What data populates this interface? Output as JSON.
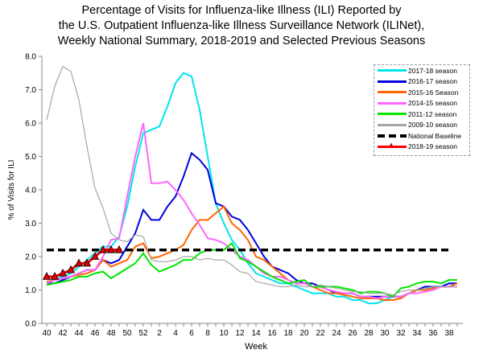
{
  "chart_data": {
    "type": "line",
    "title": [
      "Percentage of Visits for Influenza-like Illness (ILI) Reported by",
      "the U.S. Outpatient Influenza-like Illness Surveillance Network (ILINet),",
      "Weekly National Summary, 2018-2019 and Selected Previous Seasons"
    ],
    "xlabel": "Week",
    "ylabel": "% of Visits for ILI",
    "ylim": [
      0,
      8
    ],
    "yticks": [
      "0.0",
      "1.0",
      "2.0",
      "3.0",
      "4.0",
      "5.0",
      "6.0",
      "7.0",
      "8.0"
    ],
    "weeks": [
      40,
      41,
      42,
      43,
      44,
      45,
      46,
      47,
      48,
      49,
      50,
      51,
      52,
      1,
      2,
      3,
      4,
      5,
      6,
      7,
      8,
      9,
      10,
      11,
      12,
      13,
      14,
      15,
      16,
      17,
      18,
      19,
      20,
      21,
      22,
      23,
      24,
      25,
      26,
      27,
      28,
      29,
      30,
      31,
      32,
      33,
      34,
      35,
      36,
      37,
      38,
      39
    ],
    "xticks": [
      "40",
      "42",
      "44",
      "46",
      "48",
      "50",
      "52",
      "2",
      "4",
      "6",
      "8",
      "10",
      "12",
      "14",
      "16",
      "18",
      "20",
      "22",
      "24",
      "26",
      "28",
      "30",
      "32",
      "34",
      "36",
      "38"
    ],
    "legend_position": "top-right",
    "series": [
      {
        "name": "2017-18 season",
        "color": "#00e5ee",
        "values": [
          1.2,
          1.3,
          1.4,
          1.5,
          1.7,
          1.9,
          2.1,
          2.3,
          2.3,
          2.6,
          3.5,
          4.7,
          5.7,
          5.8,
          5.9,
          6.5,
          7.2,
          7.5,
          7.4,
          6.4,
          5.0,
          3.6,
          3.0,
          2.5,
          2.2,
          1.8,
          1.5,
          1.4,
          1.3,
          1.2,
          1.2,
          1.1,
          1.0,
          0.9,
          0.9,
          0.9,
          0.8,
          0.8,
          0.7,
          0.7,
          0.6,
          0.6,
          0.7,
          0.8,
          0.8,
          0.9,
          1.0,
          1.0,
          1.1,
          1.1,
          1.2,
          1.2
        ]
      },
      {
        "name": "2016-17 season",
        "color": "#0000e0",
        "values": [
          1.2,
          1.2,
          1.3,
          1.4,
          1.5,
          1.6,
          1.6,
          1.9,
          1.8,
          1.9,
          2.3,
          2.7,
          3.4,
          3.1,
          3.1,
          3.5,
          3.8,
          4.4,
          5.1,
          4.9,
          4.6,
          3.6,
          3.5,
          3.2,
          3.1,
          2.8,
          2.4,
          2.0,
          1.7,
          1.6,
          1.5,
          1.3,
          1.2,
          1.2,
          1.1,
          1.0,
          0.9,
          0.9,
          0.9,
          0.8,
          0.8,
          0.8,
          0.8,
          0.8,
          0.8,
          0.9,
          1.0,
          1.1,
          1.1,
          1.1,
          1.2,
          1.2
        ]
      },
      {
        "name": "2015-16 Season",
        "color": "#ff6600",
        "values": [
          1.25,
          1.3,
          1.35,
          1.4,
          1.45,
          1.5,
          1.6,
          1.9,
          1.7,
          1.8,
          1.9,
          2.3,
          2.4,
          1.95,
          2.0,
          2.1,
          2.2,
          2.35,
          2.8,
          3.1,
          3.1,
          3.3,
          3.5,
          3.0,
          2.8,
          2.5,
          2.0,
          1.9,
          1.7,
          1.5,
          1.3,
          1.2,
          1.2,
          1.1,
          1.0,
          0.9,
          0.9,
          0.85,
          0.8,
          0.75,
          0.75,
          0.75,
          0.7,
          0.7,
          0.75,
          0.9,
          1.0,
          1.0,
          1.05,
          1.1,
          1.1,
          1.2
        ]
      },
      {
        "name": "2014-15 season",
        "color": "#ff66ff",
        "values": [
          1.2,
          1.3,
          1.35,
          1.4,
          1.5,
          1.6,
          1.6,
          2.0,
          2.5,
          2.55,
          3.8,
          5.0,
          6.0,
          4.2,
          4.2,
          4.25,
          4.0,
          3.7,
          3.3,
          2.95,
          2.55,
          2.5,
          2.4,
          2.2,
          2.0,
          1.9,
          1.7,
          1.5,
          1.4,
          1.4,
          1.3,
          1.2,
          1.2,
          1.1,
          1.1,
          1.0,
          0.95,
          0.9,
          0.9,
          0.8,
          0.8,
          0.75,
          0.8,
          0.8,
          0.8,
          0.9,
          0.9,
          0.95,
          1.0,
          1.1,
          1.1,
          1.1
        ]
      },
      {
        "name": "2011-12 season",
        "color": "#00e600",
        "values": [
          1.15,
          1.2,
          1.25,
          1.3,
          1.4,
          1.4,
          1.5,
          1.55,
          1.35,
          1.5,
          1.65,
          1.8,
          2.1,
          1.75,
          1.55,
          1.65,
          1.75,
          1.9,
          1.9,
          2.1,
          2.2,
          2.2,
          2.2,
          2.4,
          1.95,
          1.85,
          1.7,
          1.55,
          1.4,
          1.3,
          1.2,
          1.25,
          1.3,
          1.1,
          1.1,
          1.1,
          1.1,
          1.05,
          1.0,
          0.9,
          0.95,
          0.95,
          0.9,
          0.8,
          1.05,
          1.1,
          1.2,
          1.25,
          1.25,
          1.2,
          1.3,
          1.3
        ]
      },
      {
        "name": "2009-10 season",
        "color": "#a6a6a6",
        "values": [
          6.1,
          7.1,
          7.7,
          7.55,
          6.7,
          5.3,
          4.05,
          3.45,
          2.7,
          2.5,
          2.45,
          2.65,
          2.6,
          1.9,
          1.85,
          1.85,
          1.9,
          2.0,
          2.0,
          1.9,
          1.95,
          1.9,
          1.9,
          1.75,
          1.55,
          1.5,
          1.25,
          1.2,
          1.15,
          1.1,
          1.1,
          1.15,
          1.1,
          1.1,
          1.15,
          1.1,
          1.05,
          1.0,
          0.95,
          0.95,
          0.9,
          0.9,
          0.9,
          0.85,
          0.95,
          1.0,
          1.0,
          1.05,
          1.1,
          1.1,
          1.1,
          1.1
        ]
      },
      {
        "name": "National Baseline",
        "color": "#000000",
        "baseline": 2.2
      },
      {
        "name": "2018-19 season",
        "color": "#ff0000",
        "marker": "triangle",
        "values": [
          1.4,
          1.4,
          1.5,
          1.6,
          1.8,
          1.8,
          2.0,
          2.2,
          2.2,
          2.2
        ]
      }
    ]
  }
}
